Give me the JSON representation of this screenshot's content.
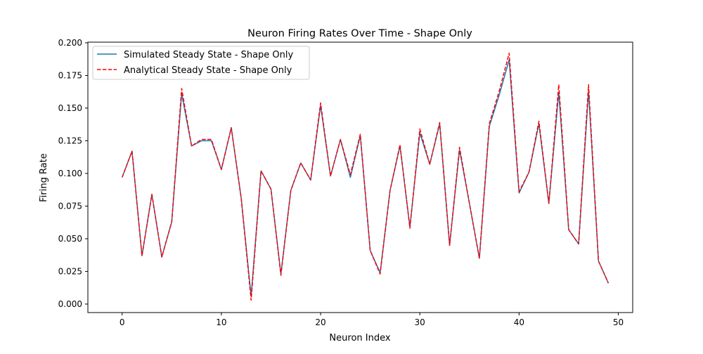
{
  "chart_data": {
    "type": "line",
    "title": "Neuron Firing Rates Over Time - Shape Only",
    "xlabel": "Neuron Index",
    "ylabel": "Firing Rate",
    "xlim": [
      -3.45,
      51.45
    ],
    "ylim": [
      -0.0065,
      0.2005
    ],
    "xticks": [
      0,
      10,
      20,
      30,
      40,
      50
    ],
    "xtick_labels": [
      "0",
      "10",
      "20",
      "30",
      "40",
      "50"
    ],
    "yticks": [
      0.0,
      0.025,
      0.05,
      0.075,
      0.1,
      0.125,
      0.15,
      0.175,
      0.2
    ],
    "ytick_labels": [
      "0.000",
      "0.025",
      "0.050",
      "0.075",
      "0.100",
      "0.125",
      "0.150",
      "0.175",
      "0.200"
    ],
    "grid": false,
    "legend_position": "top-left",
    "x": [
      0,
      1,
      2,
      3,
      4,
      5,
      6,
      7,
      8,
      9,
      10,
      11,
      12,
      13,
      14,
      15,
      16,
      17,
      18,
      19,
      20,
      21,
      22,
      23,
      24,
      25,
      26,
      27,
      28,
      29,
      30,
      31,
      32,
      33,
      34,
      35,
      36,
      37,
      38,
      39,
      40,
      41,
      42,
      43,
      44,
      45,
      46,
      47,
      48,
      49
    ],
    "series": [
      {
        "name": "Simulated Steady State - Shape Only",
        "color": "#1f77b4",
        "style": "solid",
        "values": [
          0.097,
          0.117,
          0.037,
          0.084,
          0.036,
          0.063,
          0.161,
          0.121,
          0.125,
          0.125,
          0.103,
          0.135,
          0.081,
          0.006,
          0.102,
          0.088,
          0.023,
          0.087,
          0.108,
          0.095,
          0.152,
          0.098,
          0.126,
          0.097,
          0.129,
          0.041,
          0.024,
          0.087,
          0.121,
          0.059,
          0.131,
          0.107,
          0.138,
          0.045,
          0.118,
          0.077,
          0.035,
          0.136,
          0.16,
          0.187,
          0.085,
          0.101,
          0.138,
          0.077,
          0.162,
          0.057,
          0.046,
          0.163,
          0.033,
          0.016
        ]
      },
      {
        "name": "Analytical Steady State - Shape Only",
        "color": "#ff0000",
        "style": "dashed",
        "values": [
          0.097,
          0.117,
          0.037,
          0.084,
          0.036,
          0.063,
          0.165,
          0.121,
          0.126,
          0.126,
          0.103,
          0.135,
          0.081,
          0.003,
          0.102,
          0.088,
          0.022,
          0.087,
          0.108,
          0.095,
          0.154,
          0.098,
          0.126,
          0.099,
          0.13,
          0.041,
          0.023,
          0.087,
          0.122,
          0.058,
          0.134,
          0.107,
          0.139,
          0.045,
          0.12,
          0.077,
          0.035,
          0.138,
          0.163,
          0.192,
          0.086,
          0.101,
          0.14,
          0.077,
          0.168,
          0.057,
          0.046,
          0.168,
          0.033,
          0.016
        ]
      }
    ]
  }
}
